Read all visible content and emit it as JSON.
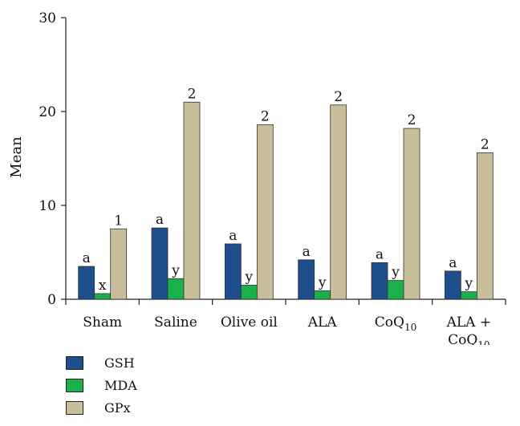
{
  "chart_data": {
    "type": "bar",
    "title": "",
    "xlabel": "",
    "ylabel": "Mean",
    "ylim": [
      0,
      30
    ],
    "yticks": [
      0,
      10,
      20,
      30
    ],
    "grid": false,
    "legend_position": "bottom-left",
    "categories": [
      {
        "main": "Sham",
        "sub": "",
        "line2": "",
        "line2_sub": ""
      },
      {
        "main": "Saline",
        "sub": "",
        "line2": "",
        "line2_sub": ""
      },
      {
        "main": "Olive oil",
        "sub": "",
        "line2": "",
        "line2_sub": ""
      },
      {
        "main": "ALA",
        "sub": "",
        "line2": "",
        "line2_sub": ""
      },
      {
        "main": "CoQ",
        "sub": "10",
        "line2": "",
        "line2_sub": ""
      },
      {
        "main": "ALA +",
        "sub": "",
        "line2": "CoQ",
        "line2_sub": "10"
      }
    ],
    "series": [
      {
        "name": "GSH",
        "color": "#1f4e8c",
        "values": [
          3.5,
          7.6,
          5.9,
          4.2,
          3.9,
          3.0
        ],
        "labels": [
          "a",
          "a",
          "a",
          "a",
          "a",
          "a"
        ]
      },
      {
        "name": "MDA",
        "color": "#1ab04a",
        "values": [
          0.6,
          2.2,
          1.5,
          0.9,
          2.0,
          0.8
        ],
        "labels": [
          "x",
          "y",
          "y",
          "y",
          "y",
          "y"
        ]
      },
      {
        "name": "GPx",
        "color": "#c8bf9a",
        "values": [
          7.5,
          21.0,
          18.6,
          20.7,
          18.2,
          15.6
        ],
        "labels": [
          "1",
          "2",
          "2",
          "2",
          "2",
          "2"
        ]
      }
    ]
  }
}
